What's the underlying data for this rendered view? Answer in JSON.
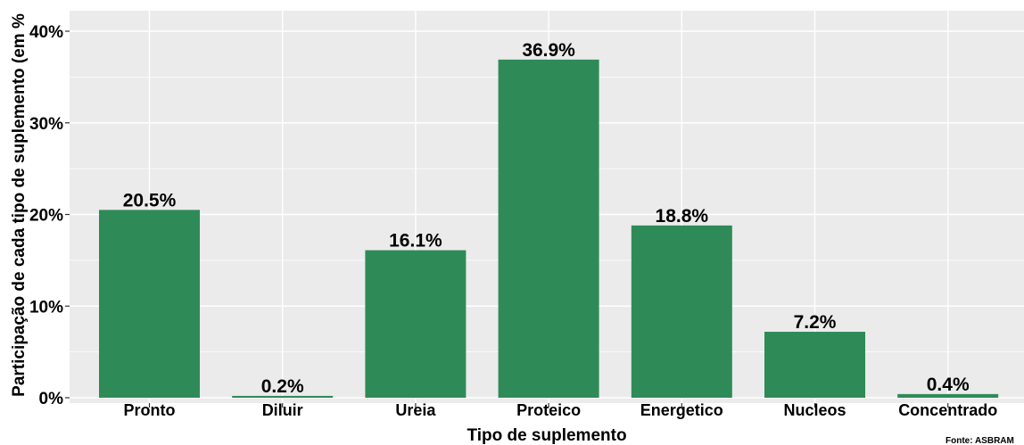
{
  "chart_data": {
    "type": "bar",
    "categories": [
      "Pronto",
      "Diluir",
      "Ureia",
      "Proteico",
      "Energetico",
      "Nucleos",
      "Concentrado"
    ],
    "values": [
      20.5,
      0.2,
      16.1,
      36.9,
      18.8,
      7.2,
      0.4
    ],
    "data_labels": [
      "20.5%",
      "0.2%",
      "16.1%",
      "36.9%",
      "18.8%",
      "7.2%",
      "0.4%"
    ],
    "xlabel": "Tipo de suplemento",
    "ylabel": "Participação de cada tipo de suplemento (em %",
    "ylim": [
      0,
      40
    ],
    "yticks": [
      0,
      10,
      20,
      30,
      40
    ],
    "ytick_labels": [
      "0%",
      "10%",
      "20%",
      "30%",
      "40%"
    ],
    "grid": true,
    "legend": "none",
    "source": "Fonte: ASBRAM"
  },
  "colors": {
    "bar": "#2e8b57",
    "panel": "#ebebeb",
    "grid_major": "#ffffff",
    "text": "#000000"
  }
}
